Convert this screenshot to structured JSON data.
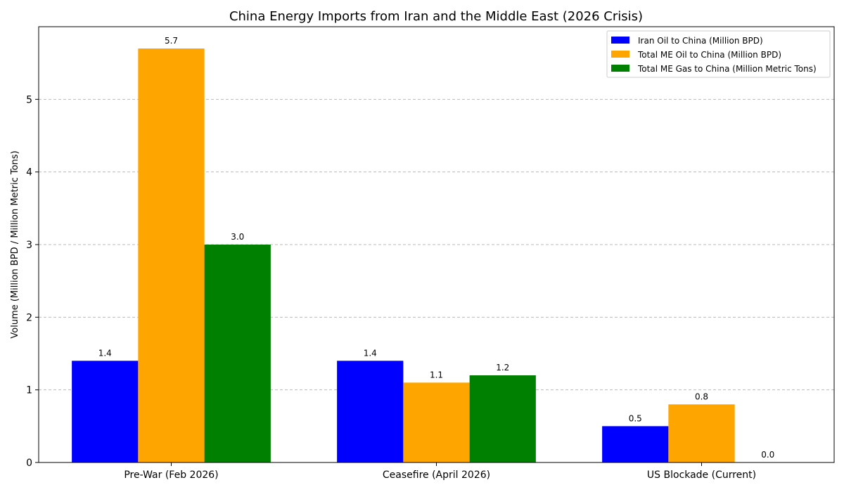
{
  "chart_data": {
    "type": "bar",
    "title": "China Energy Imports from Iran and the Middle East (2026 Crisis)",
    "xlabel": "",
    "ylabel": "Volume (Million BPD / Million Metric Tons)",
    "categories": [
      "Pre-War (Feb 2026)",
      "Ceasefire (April 2026)",
      "US Blockade (Current)"
    ],
    "series": [
      {
        "name": "Iran Oil to China (Million BPD)",
        "color": "#0000ff",
        "values": [
          1.4,
          1.4,
          0.5
        ],
        "labels": [
          "1.4",
          "1.4",
          "0.5"
        ]
      },
      {
        "name": "Total ME Oil to China (Million BPD)",
        "color": "#ffa500",
        "values": [
          5.7,
          1.1,
          0.8
        ],
        "labels": [
          "5.7",
          "1.1",
          "0.8"
        ]
      },
      {
        "name": "Total ME Gas to China (Million Metric Tons)",
        "color": "#008000",
        "values": [
          3.0,
          1.2,
          0.0
        ],
        "labels": [
          "3.0",
          "1.2",
          "0.0"
        ]
      }
    ],
    "ylim": [
      0,
      6
    ],
    "yticks": [
      0,
      1,
      2,
      3,
      4,
      5
    ],
    "grid": "y-dashed",
    "legend_position": "top-right"
  }
}
